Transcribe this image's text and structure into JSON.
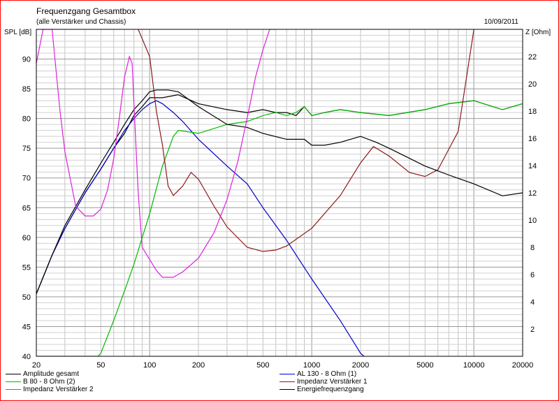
{
  "window": {
    "border_color": "#ff0000"
  },
  "chart_data": {
    "type": "line",
    "title": "Frequenzgang Gesamtbox",
    "subtitle": "(alle Verstärker und Chassis)",
    "date": "10/09/2011",
    "ylabel_left": "SPL [dB]",
    "ylabel_right": "Z [Ohm]",
    "x_scale": "log",
    "xlim": [
      20,
      20000
    ],
    "ylim_left": [
      40,
      95
    ],
    "ylim_right": [
      0,
      24
    ],
    "x_ticks": [
      20,
      50,
      100,
      200,
      500,
      1000,
      2000,
      5000,
      10000,
      20000
    ],
    "x_tick_labels": [
      "20",
      "50",
      "100",
      "200",
      "500",
      "1000",
      "2000",
      "5000",
      "10000",
      "20000"
    ],
    "y_ticks_left": [
      40,
      45,
      50,
      55,
      60,
      65,
      70,
      75,
      80,
      85,
      90
    ],
    "y_ticks_right": [
      2,
      4,
      6,
      8,
      10,
      12,
      14,
      16,
      18,
      20,
      22
    ],
    "grid": true,
    "legend_placement": "bottom",
    "series": [
      {
        "name": "Amplitude gesamt",
        "axis": "left",
        "color": "#000000",
        "x": [
          20,
          25,
          30,
          40,
          50,
          60,
          70,
          80,
          90,
          100,
          120,
          150,
          200,
          300,
          400,
          500,
          600,
          700,
          800,
          900,
          1000,
          1200,
          1500,
          2000,
          3000,
          5000,
          7000,
          10000,
          15000,
          20000
        ],
        "y": [
          50.5,
          57,
          61.5,
          67.5,
          71.5,
          75,
          77.5,
          80.5,
          82,
          83.5,
          83.5,
          84,
          82.5,
          81.5,
          81,
          81.5,
          81,
          81,
          80.5,
          82,
          80.5,
          81,
          81.5,
          81,
          80.5,
          81.5,
          82.5,
          83,
          81.5,
          82.5
        ]
      },
      {
        "name": "AL 130 - 8 Ohm (1)",
        "axis": "left",
        "color": "#0000cc",
        "x": [
          20,
          25,
          30,
          40,
          50,
          60,
          70,
          80,
          90,
          100,
          110,
          120,
          140,
          160,
          200,
          300,
          400,
          500,
          700,
          1000,
          1500,
          2000,
          2100
        ],
        "y": [
          50.5,
          57,
          61.5,
          67.5,
          71.5,
          75,
          78,
          80,
          81.5,
          82.5,
          83,
          82.5,
          81,
          79.5,
          76.5,
          72,
          69,
          65,
          59.5,
          53,
          46,
          40.5,
          40
        ]
      },
      {
        "name": "B 80 - 8 Ohm (2)",
        "axis": "left",
        "color": "#00bb00",
        "x": [
          20,
          48,
          50,
          60,
          70,
          80,
          100,
          120,
          140,
          150,
          200,
          300,
          400,
          500,
          600,
          700,
          800,
          900,
          1000,
          1200,
          1500,
          2000,
          3000,
          5000,
          7000,
          10000,
          15000,
          20000
        ],
        "y": [
          40,
          40,
          40.5,
          46,
          51,
          55.5,
          64,
          72,
          77,
          78,
          77.5,
          79,
          79.5,
          80.5,
          81,
          80.5,
          81,
          82,
          80.5,
          81,
          81.5,
          81,
          80.5,
          81.5,
          82.5,
          83,
          81.5,
          82.5
        ]
      },
      {
        "name": "Impedanz Verstärker 1",
        "axis": "right",
        "color": "#8b1a1a",
        "x": [
          85,
          100,
          110,
          120,
          130,
          140,
          160,
          180,
          200,
          250,
          300,
          400,
          500,
          600,
          700,
          1000,
          1500,
          2000,
          2400,
          3000,
          4000,
          5000,
          6000,
          8000,
          10000
        ],
        "y": [
          24,
          22,
          18,
          15.5,
          12.5,
          11.8,
          12.5,
          13.5,
          13,
          11,
          9.5,
          8,
          7.7,
          7.8,
          8.1,
          9.4,
          11.8,
          14.2,
          15.4,
          14.7,
          13.5,
          13.2,
          13.7,
          16.5,
          24
        ]
      },
      {
        "name": "Energiefrequenzgang",
        "axis": "left",
        "color": "#000000",
        "x": [
          20,
          25,
          30,
          40,
          50,
          60,
          70,
          80,
          90,
          100,
          110,
          120,
          130,
          150,
          200,
          300,
          400,
          500,
          700,
          900,
          1000,
          1200,
          1500,
          2000,
          2500,
          3000,
          5000,
          7000,
          10000,
          15000,
          20000
        ],
        "y": [
          50.5,
          57,
          62,
          68,
          72.5,
          76,
          79,
          81.5,
          83,
          84.5,
          84.8,
          84.8,
          84.8,
          84.5,
          82,
          79,
          78.5,
          77.5,
          76.5,
          76.5,
          75.5,
          75.5,
          76,
          77,
          76,
          75,
          72,
          70.5,
          69,
          67,
          67.5
        ]
      },
      {
        "name": "Impedanz Verstärker 2",
        "axis": "right",
        "color": "#dd22dd",
        "x": [
          20,
          22,
          25,
          28,
          30,
          35,
          40,
          45,
          50,
          55,
          60,
          65,
          70,
          75,
          78,
          80,
          85,
          90,
          100,
          110,
          120,
          140,
          160,
          200,
          250,
          300,
          350,
          400,
          450,
          500,
          550,
          600
        ],
        "y": [
          21.5,
          24,
          24,
          18,
          15,
          11,
          10.3,
          10.3,
          10.8,
          12.2,
          14.5,
          17.5,
          20.5,
          22,
          21.5,
          18.5,
          12,
          8,
          7.1,
          6.3,
          5.8,
          5.8,
          6.2,
          7.2,
          9.1,
          11.5,
          14.3,
          17.5,
          20.5,
          22.5,
          24,
          24
        ]
      }
    ],
    "legend_entries": [
      "Amplitude gesamt",
      "AL 130 - 8 Ohm (1)",
      "B 80 - 8 Ohm (2)",
      "Impedanz Verstärker 1",
      "Impedanz Verstärker 2",
      "Energiefrequenzgang"
    ]
  }
}
